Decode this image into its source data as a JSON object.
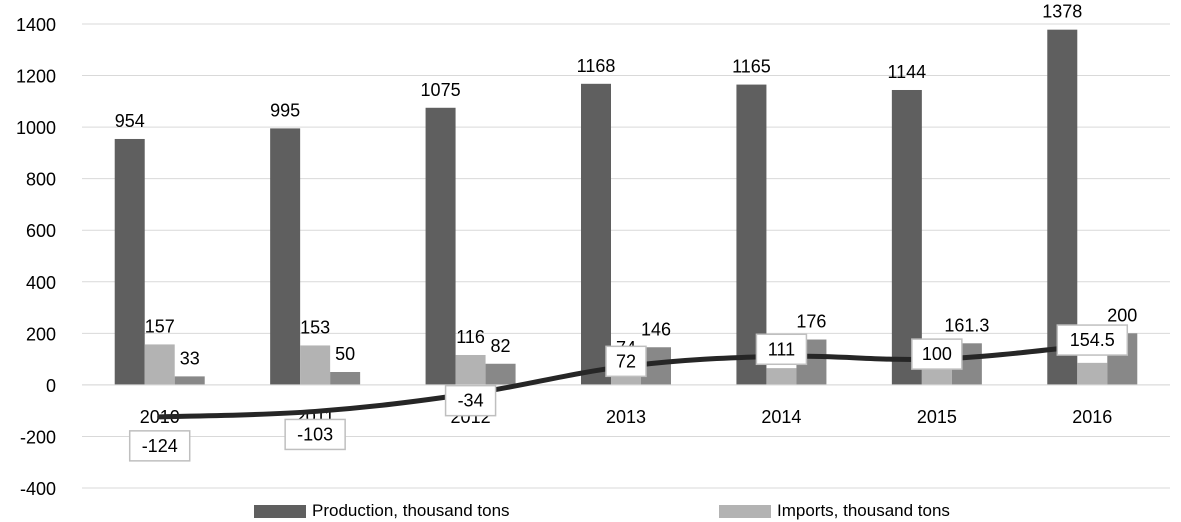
{
  "chart_data": {
    "type": "bar",
    "categories": [
      "2010",
      "2011",
      "2012",
      "2013",
      "2014",
      "2015",
      "2016"
    ],
    "series": [
      {
        "name": "Production, thousand tons",
        "kind": "bar",
        "color": "#5f5f5f",
        "values": [
          954,
          995,
          1075,
          1168,
          1165,
          1144,
          1378
        ]
      },
      {
        "name": "Imports, thousand tons",
        "kind": "bar",
        "color": "#b3b3b3",
        "values": [
          157,
          153,
          116,
          74,
          65,
          61.3,
          85.5
        ]
      },
      {
        "name": "",
        "kind": "bar",
        "color": "#888888",
        "values": [
          33,
          50,
          82,
          146,
          176,
          161.3,
          200
        ]
      },
      {
        "name": "",
        "kind": "line",
        "color": "#262626",
        "values": [
          -124,
          -103,
          -34,
          72,
          111,
          100,
          154.5
        ]
      }
    ],
    "yticks": [
      "-400",
      "-200",
      "0",
      "200",
      "400",
      "600",
      "800",
      "1000",
      "1200",
      "1400"
    ],
    "ylim": [
      -400,
      1400
    ],
    "grid": true,
    "legend_position": "bottom",
    "title": "",
    "xlabel": "",
    "ylabel": ""
  },
  "legend": {
    "items": [
      {
        "label": "Production, thousand tons",
        "color": "#5f5f5f"
      },
      {
        "label": "Imports, thousand tons",
        "color": "#b3b3b3"
      }
    ]
  }
}
